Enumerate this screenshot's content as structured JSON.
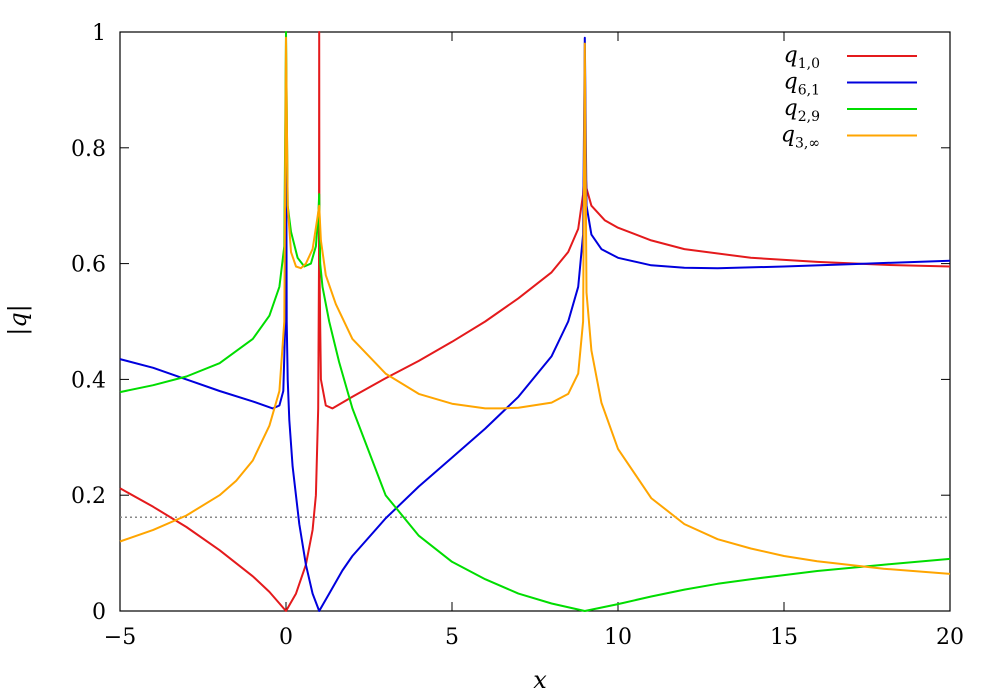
{
  "chart_data": {
    "type": "line",
    "title": "",
    "xlabel": "x",
    "ylabel": "|q|",
    "xlim": [
      -5,
      20
    ],
    "ylim": [
      0,
      1
    ],
    "xticks": [
      -5,
      0,
      5,
      10,
      15,
      20
    ],
    "yticks": [
      0,
      0.2,
      0.4,
      0.6,
      0.8,
      1
    ],
    "ytick_labels": [
      "0",
      "0.2",
      "0.4",
      "0.6",
      "0.8",
      "1"
    ],
    "xtick_labels": [
      "−5",
      "0",
      "5",
      "10",
      "15",
      "20"
    ],
    "legend_position": "top-right",
    "reference_line": {
      "y": 0.162,
      "style": "dotted",
      "color": "#888888"
    },
    "series": [
      {
        "name": "q",
        "subscript": "1,0",
        "color": "#e41a1c",
        "points": [
          [
            -5,
            0.212
          ],
          [
            -4,
            0.18
          ],
          [
            -3,
            0.145
          ],
          [
            -2,
            0.105
          ],
          [
            -1,
            0.06
          ],
          [
            -0.5,
            0.033
          ],
          [
            0,
            0.0
          ],
          [
            0.3,
            0.03
          ],
          [
            0.6,
            0.08
          ],
          [
            0.8,
            0.14
          ],
          [
            0.9,
            0.2
          ],
          [
            0.97,
            0.35
          ],
          [
            0.995,
            0.6
          ],
          [
            1.0,
            1.0
          ],
          [
            1.005,
            0.6
          ],
          [
            1.05,
            0.4
          ],
          [
            1.2,
            0.355
          ],
          [
            1.4,
            0.35
          ],
          [
            2,
            0.37
          ],
          [
            3,
            0.402
          ],
          [
            4,
            0.432
          ],
          [
            5,
            0.465
          ],
          [
            6,
            0.5
          ],
          [
            7,
            0.54
          ],
          [
            8,
            0.585
          ],
          [
            8.5,
            0.62
          ],
          [
            8.8,
            0.66
          ],
          [
            8.95,
            0.72
          ],
          [
            9.0,
            0.78
          ],
          [
            9.05,
            0.73
          ],
          [
            9.2,
            0.7
          ],
          [
            9.6,
            0.675
          ],
          [
            10,
            0.662
          ],
          [
            11,
            0.64
          ],
          [
            12,
            0.625
          ],
          [
            14,
            0.61
          ],
          [
            16,
            0.603
          ],
          [
            18,
            0.598
          ],
          [
            20,
            0.595
          ]
        ]
      },
      {
        "name": "q",
        "subscript": "6,1",
        "color": "#0000dd",
        "points": [
          [
            -5,
            0.435
          ],
          [
            -4,
            0.42
          ],
          [
            -3,
            0.4
          ],
          [
            -2,
            0.38
          ],
          [
            -1,
            0.362
          ],
          [
            -0.4,
            0.35
          ],
          [
            -0.2,
            0.355
          ],
          [
            -0.08,
            0.38
          ],
          [
            -0.02,
            0.5
          ],
          [
            0.0,
            0.95
          ],
          [
            0.02,
            0.5
          ],
          [
            0.05,
            0.4
          ],
          [
            0.1,
            0.33
          ],
          [
            0.2,
            0.25
          ],
          [
            0.4,
            0.15
          ],
          [
            0.6,
            0.08
          ],
          [
            0.8,
            0.03
          ],
          [
            1.0,
            0.0
          ],
          [
            1.3,
            0.03
          ],
          [
            1.7,
            0.07
          ],
          [
            2,
            0.095
          ],
          [
            3,
            0.16
          ],
          [
            4,
            0.215
          ],
          [
            5,
            0.265
          ],
          [
            6,
            0.315
          ],
          [
            7,
            0.37
          ],
          [
            8,
            0.44
          ],
          [
            8.5,
            0.5
          ],
          [
            8.8,
            0.56
          ],
          [
            8.95,
            0.65
          ],
          [
            9.0,
            0.99
          ],
          [
            9.05,
            0.7
          ],
          [
            9.2,
            0.65
          ],
          [
            9.5,
            0.625
          ],
          [
            10,
            0.61
          ],
          [
            11,
            0.597
          ],
          [
            12,
            0.593
          ],
          [
            13,
            0.592
          ],
          [
            15,
            0.595
          ],
          [
            17.5,
            0.6
          ],
          [
            20,
            0.605
          ]
        ]
      },
      {
        "name": "q",
        "subscript": "2,9",
        "color": "#00dd00",
        "points": [
          [
            -5,
            0.378
          ],
          [
            -4,
            0.39
          ],
          [
            -3,
            0.405
          ],
          [
            -2,
            0.428
          ],
          [
            -1,
            0.47
          ],
          [
            -0.5,
            0.51
          ],
          [
            -0.2,
            0.56
          ],
          [
            -0.05,
            0.63
          ],
          [
            0.0,
            1.0
          ],
          [
            0.05,
            0.7
          ],
          [
            0.15,
            0.655
          ],
          [
            0.35,
            0.61
          ],
          [
            0.55,
            0.595
          ],
          [
            0.75,
            0.6
          ],
          [
            0.9,
            0.63
          ],
          [
            0.97,
            0.68
          ],
          [
            1.0,
            0.72
          ],
          [
            1.03,
            0.6
          ],
          [
            1.1,
            0.56
          ],
          [
            1.3,
            0.5
          ],
          [
            1.6,
            0.43
          ],
          [
            2,
            0.35
          ],
          [
            3,
            0.2
          ],
          [
            4,
            0.13
          ],
          [
            5,
            0.085
          ],
          [
            6,
            0.055
          ],
          [
            7,
            0.03
          ],
          [
            8,
            0.013
          ],
          [
            9.0,
            0.0
          ],
          [
            10,
            0.012
          ],
          [
            11,
            0.025
          ],
          [
            12,
            0.037
          ],
          [
            13,
            0.047
          ],
          [
            14,
            0.055
          ],
          [
            15,
            0.062
          ],
          [
            16,
            0.069
          ],
          [
            18,
            0.08
          ],
          [
            20,
            0.09
          ]
        ]
      },
      {
        "name": "q",
        "subscript": "3,∞",
        "color": "#ffa500",
        "points": [
          [
            -5,
            0.12
          ],
          [
            -4,
            0.14
          ],
          [
            -3,
            0.165
          ],
          [
            -2,
            0.2
          ],
          [
            -1.5,
            0.225
          ],
          [
            -1,
            0.26
          ],
          [
            -0.5,
            0.32
          ],
          [
            -0.2,
            0.38
          ],
          [
            -0.05,
            0.5
          ],
          [
            0.0,
            0.99
          ],
          [
            0.05,
            0.7
          ],
          [
            0.15,
            0.62
          ],
          [
            0.3,
            0.595
          ],
          [
            0.45,
            0.592
          ],
          [
            0.6,
            0.6
          ],
          [
            0.8,
            0.625
          ],
          [
            0.95,
            0.68
          ],
          [
            1.0,
            0.7
          ],
          [
            1.05,
            0.64
          ],
          [
            1.2,
            0.58
          ],
          [
            1.5,
            0.53
          ],
          [
            2,
            0.47
          ],
          [
            3,
            0.41
          ],
          [
            4,
            0.375
          ],
          [
            5,
            0.358
          ],
          [
            6,
            0.35
          ],
          [
            6.5,
            0.35
          ],
          [
            7,
            0.351
          ],
          [
            8,
            0.36
          ],
          [
            8.5,
            0.375
          ],
          [
            8.8,
            0.41
          ],
          [
            8.95,
            0.5
          ],
          [
            9.0,
            0.98
          ],
          [
            9.05,
            0.55
          ],
          [
            9.2,
            0.45
          ],
          [
            9.5,
            0.36
          ],
          [
            10,
            0.28
          ],
          [
            11,
            0.195
          ],
          [
            12,
            0.15
          ],
          [
            13,
            0.124
          ],
          [
            14,
            0.108
          ],
          [
            15,
            0.095
          ],
          [
            16,
            0.086
          ],
          [
            18,
            0.073
          ],
          [
            20,
            0.064
          ]
        ]
      }
    ]
  }
}
